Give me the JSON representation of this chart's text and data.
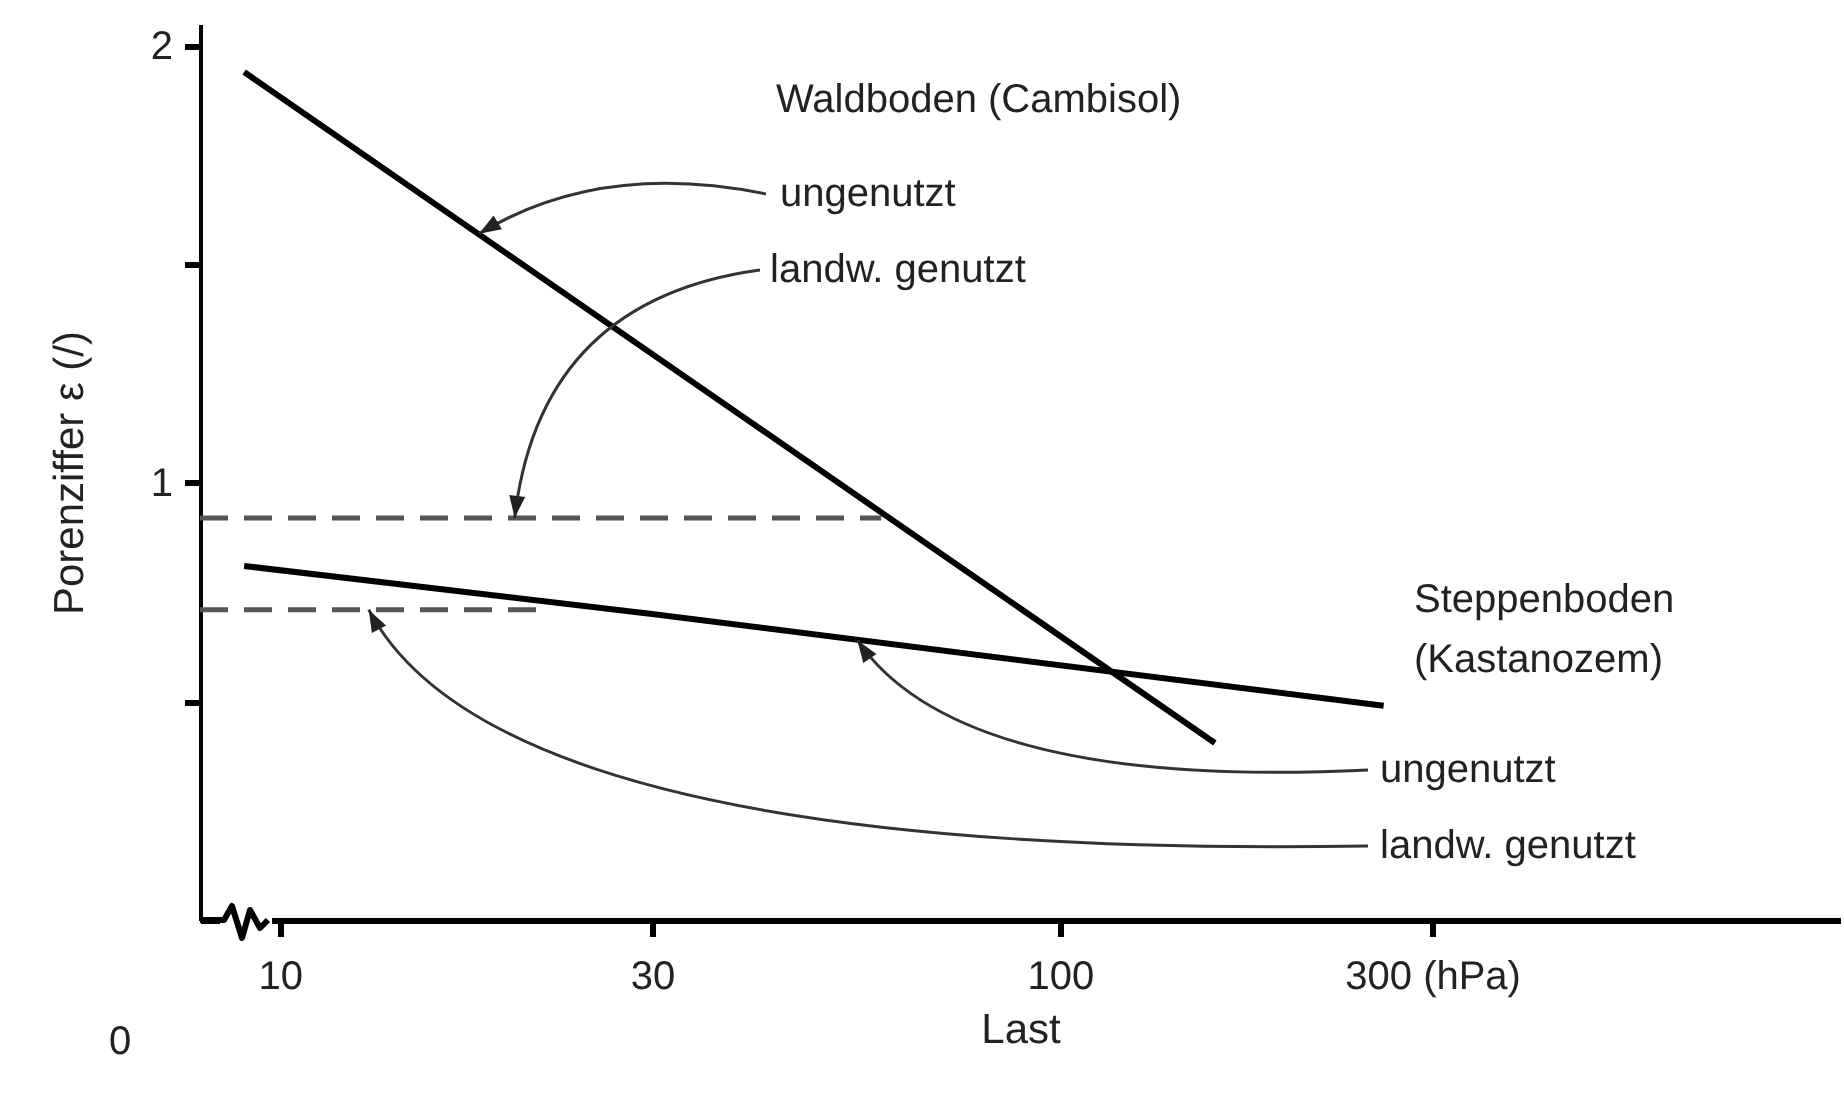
{
  "chart_data": {
    "type": "line",
    "xlabel": "Last",
    "ylabel": "Porenziffer ε (/)",
    "log": "x",
    "xlim": [
      7.9,
      1000
    ],
    "xticks": [
      10,
      30,
      100,
      {
        "value": 300,
        "label": "300 (hPa)"
      }
    ],
    "ylim": [
      0,
      2.05
    ],
    "yticks": [
      {
        "value": 0.5,
        "label": null
      },
      1,
      {
        "value": 1.5,
        "label": null
      },
      2
    ],
    "series": [
      {
        "color": "#000000",
        "line_style": "solid",
        "x": [
          9,
          158
        ],
        "values": [
          1.94,
          0.405
        ]
      },
      {
        "color": "#555555",
        "line_style": "dashed",
        "x": [
          7.9,
          59
        ],
        "values": [
          0.92,
          0.92
        ]
      },
      {
        "color": "#000000",
        "line_style": "solid",
        "x": [
          9,
          30,
          260
        ],
        "values": [
          0.81,
          0.7,
          0.49
        ]
      },
      {
        "color": "#555555",
        "line_style": "dashed",
        "x": [
          7.9,
          21.5
        ],
        "values": [
          0.71,
          0.71
        ]
      }
    ],
    "annotations": [
      "Waldboden (Cambisol)",
      {
        "text": "ungenutzt",
        "x": 18,
        "y": 1.57
      },
      {
        "text": "landw. genutzt",
        "x": 20,
        "y": 0.92
      },
      "Steppenboden (Kastanozem)",
      {
        "text": "ungenutzt",
        "x": 55,
        "y": 0.64
      },
      {
        "text": "landw. genutzt",
        "x": 13,
        "y": 0.71
      },
      "0"
    ]
  }
}
